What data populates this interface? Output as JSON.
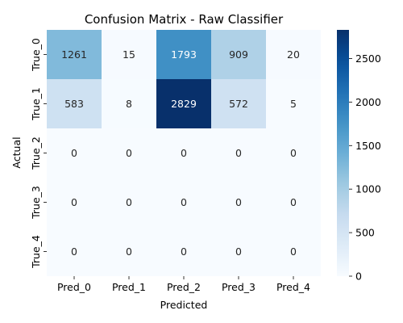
{
  "chart_data": {
    "type": "heatmap",
    "title": "Confusion Matrix - Raw Classifier",
    "xlabel": "Predicted",
    "ylabel": "Actual",
    "x_categories": [
      "Pred_0",
      "Pred_1",
      "Pred_2",
      "Pred_3",
      "Pred_4"
    ],
    "y_categories": [
      "True_0",
      "True_1",
      "True_2",
      "True_3",
      "True_4"
    ],
    "values": [
      [
        1261,
        15,
        1793,
        909,
        20
      ],
      [
        583,
        8,
        2829,
        572,
        5
      ],
      [
        0,
        0,
        0,
        0,
        0
      ],
      [
        0,
        0,
        0,
        0,
        0
      ],
      [
        0,
        0,
        0,
        0,
        0
      ]
    ],
    "vmin": 0,
    "vmax": 2829,
    "colormap": "Blues",
    "colorbar_ticks": [
      "0",
      "500",
      "1000",
      "1500",
      "2000",
      "2500"
    ],
    "colorbar_tick_values": [
      0,
      500,
      1000,
      1500,
      2000,
      2500
    ],
    "annotate": true
  }
}
